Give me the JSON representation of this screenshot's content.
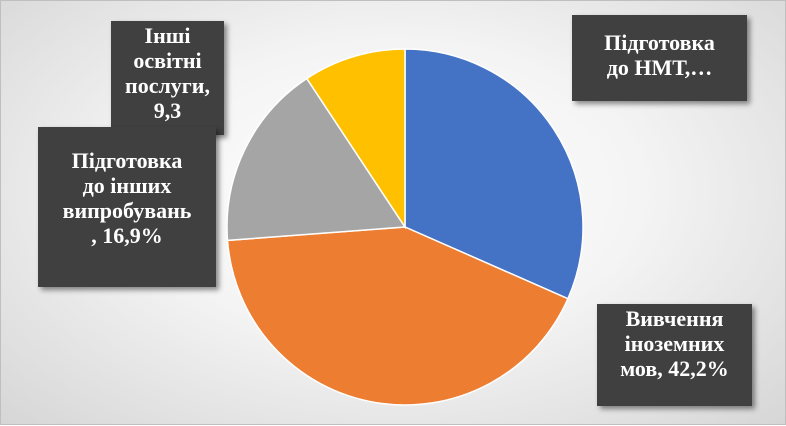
{
  "chart_data": {
    "type": "pie",
    "slices": [
      {
        "label": "Підготовка до НМТ,…",
        "value": 31.6,
        "color": "#4472C4"
      },
      {
        "label": "Вивчення іноземних мов, 42,2%",
        "value": 42.2,
        "color": "#ED7D31"
      },
      {
        "label": "Підготовка до інших випробувань , 16,9%",
        "value": 16.9,
        "color": "#A5A5A5"
      },
      {
        "label": "Інші освітні послуги, 9,3",
        "value": 9.3,
        "color": "#FFC000"
      }
    ],
    "labels": {
      "nmt": "Підготовка\nдо НМТ,…",
      "languages": "Вивчення\nіноземних\nмов, 42,2%",
      "other_services": "Інші\nосвітні\nпослуги,\n9,3",
      "other_tests": "Підготовка\nдо інших\nвипробувань\n, 16,9%"
    }
  }
}
